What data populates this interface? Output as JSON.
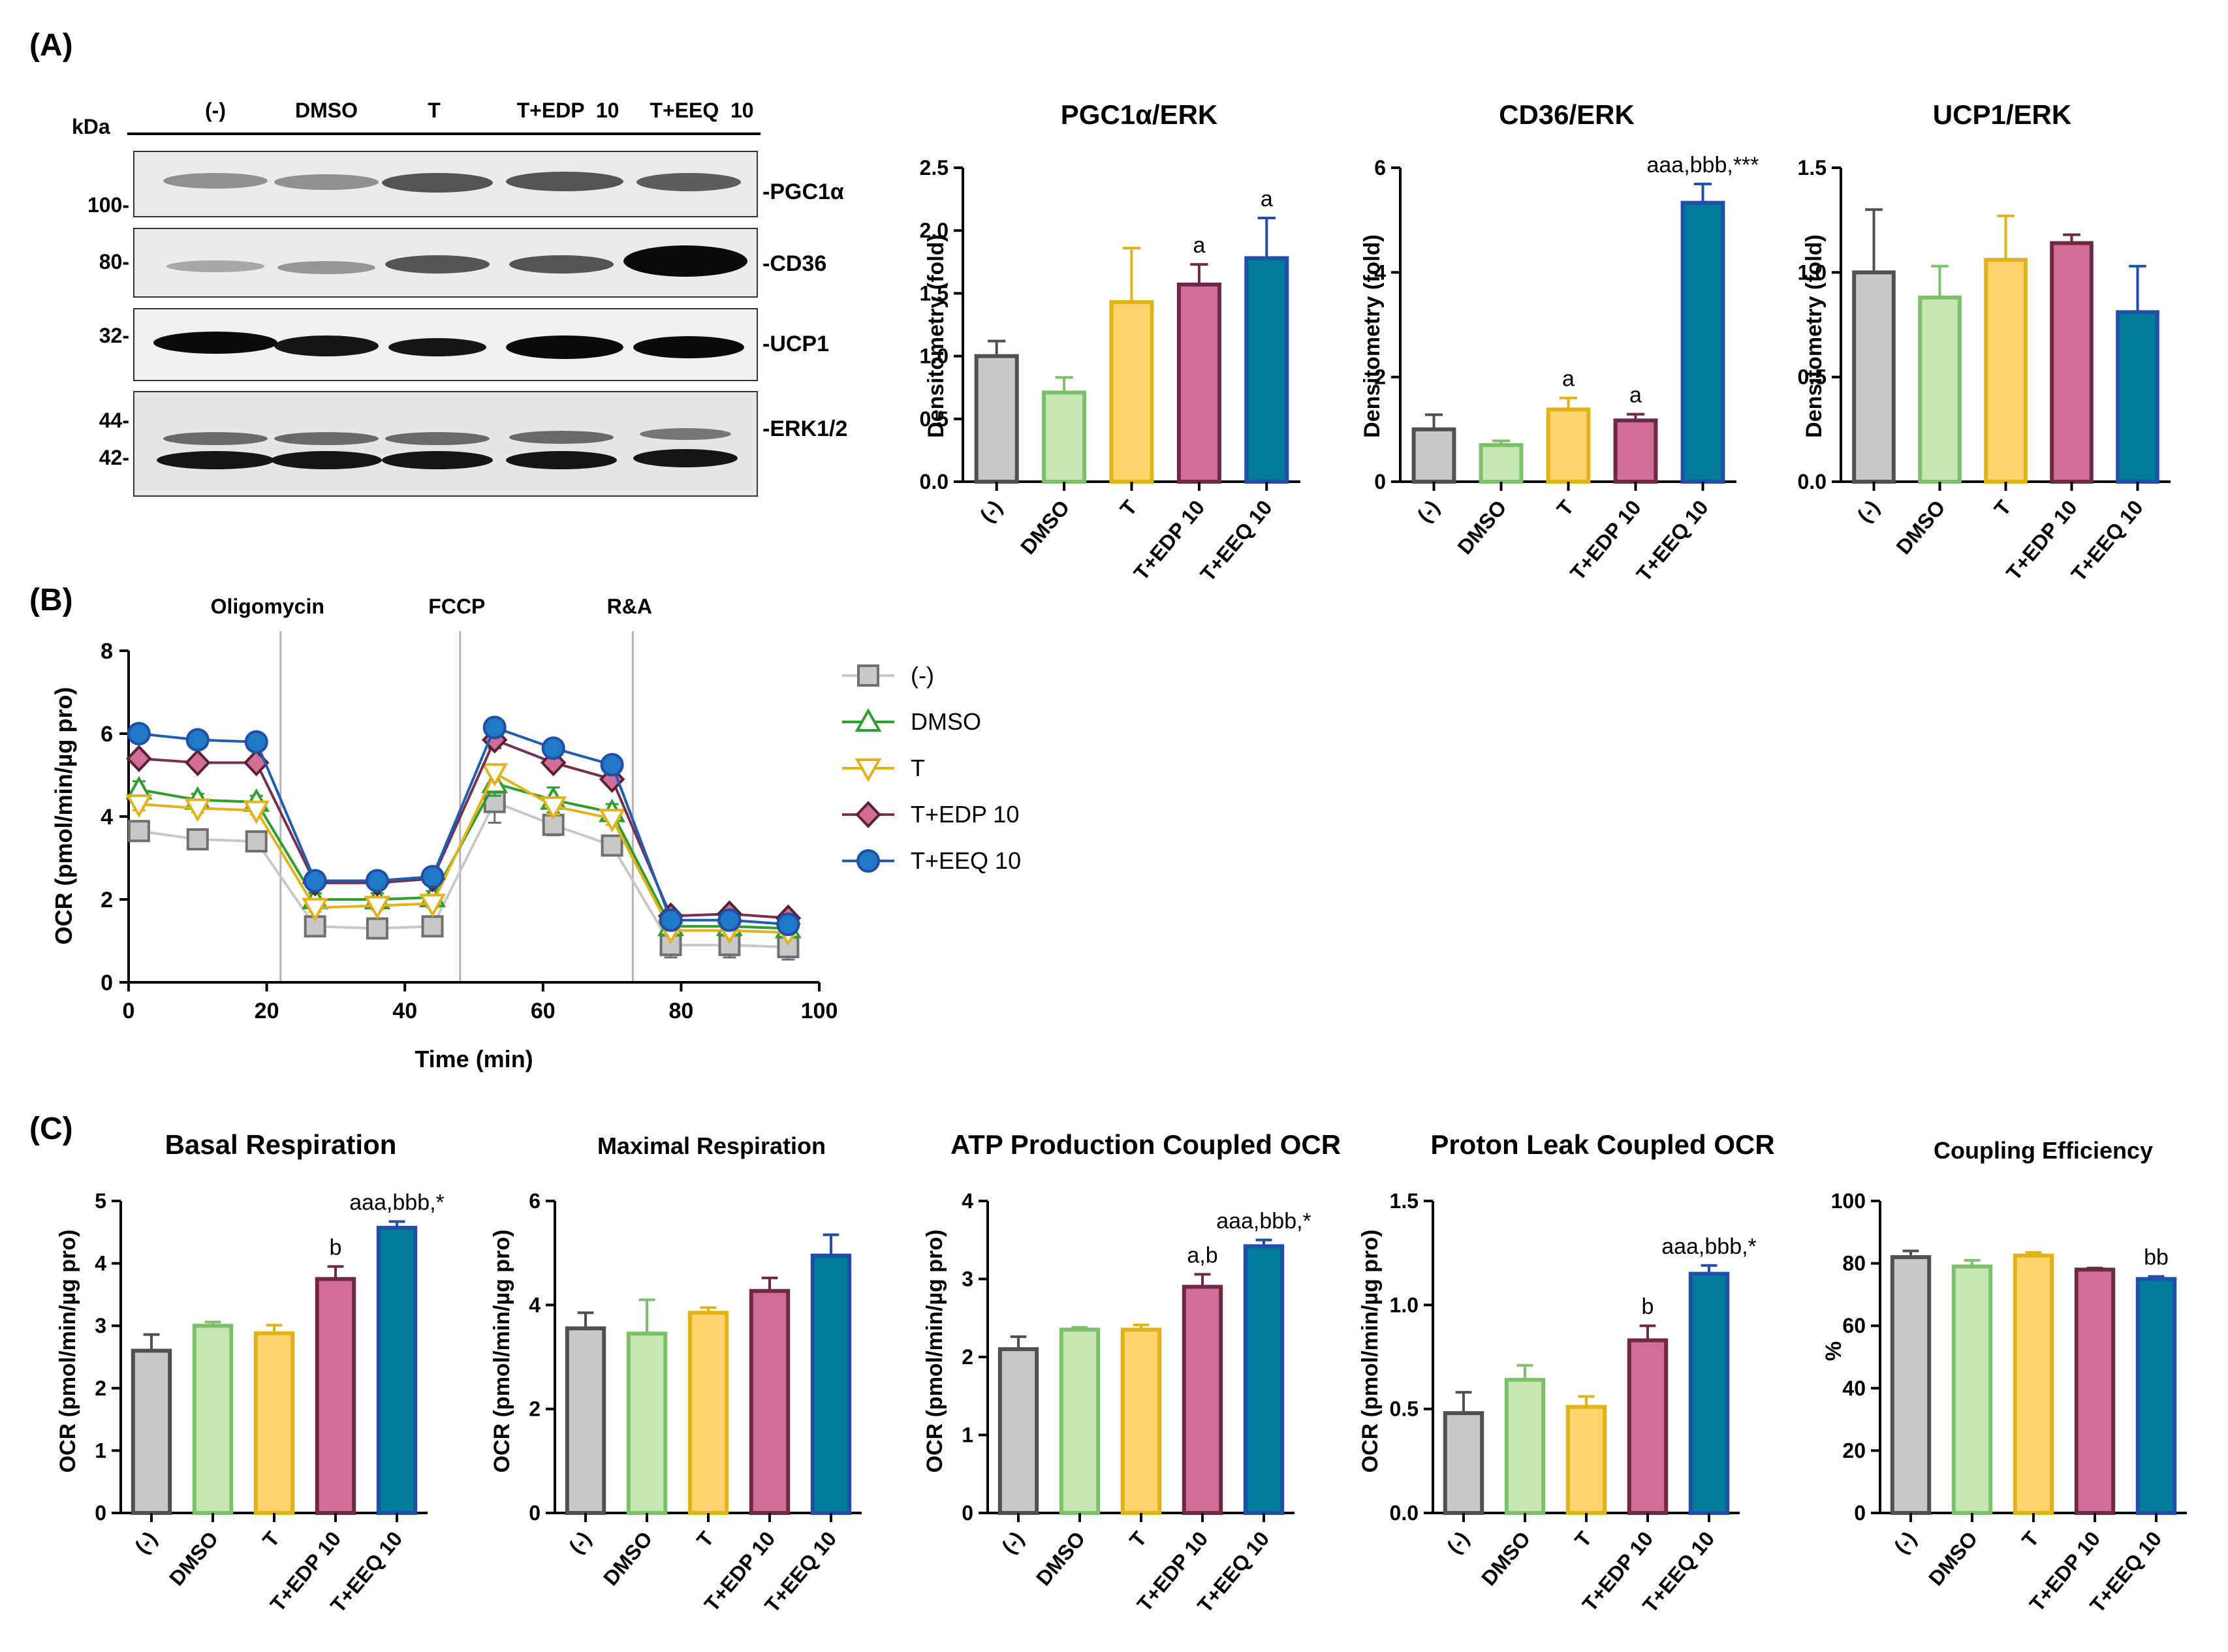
{
  "panel_labels": {
    "a": "(A)",
    "b": "(B)",
    "c": "(C)"
  },
  "colors": {
    "neg": "#c8c8c8",
    "dmso": "#c8e6b4",
    "t": "#ffd36e",
    "edp": "#d06e96",
    "eeq": "#007c99",
    "neg_edge": "#505050",
    "dmso_edge": "#7cc06a",
    "t_edge": "#e2b21a",
    "edp_edge": "#6e2a44",
    "eeq_edge": "#1f4fa8"
  },
  "categories": [
    "(-)",
    "DMSO",
    "T",
    "T+EDP 10",
    "T+EEQ 10"
  ],
  "western_blot": {
    "lanes": [
      "(-)",
      "DMSO",
      "T",
      "T+EDP  10",
      "T+EEQ  10"
    ],
    "kda_label": "kDa",
    "markers": [
      "100-",
      "80-",
      "32-",
      "44-",
      "42-"
    ],
    "proteins": [
      "-PGC1α",
      "-CD36",
      "-UCP1",
      "-ERK1/2"
    ]
  },
  "chart_data": [
    {
      "id": "pgc1a",
      "type": "bar",
      "title": "PGC1α/ERK",
      "ylabel": "Densitometry (fold)",
      "ylim": [
        0,
        2.5
      ],
      "ticks": [
        "0.0",
        "0.5",
        "1.0",
        "1.5",
        "2.0",
        "2.5"
      ],
      "categories": [
        "(-)",
        "DMSO",
        "T",
        "T+EDP 10",
        "T+EEQ 10"
      ],
      "values": [
        1.0,
        0.71,
        1.43,
        1.57,
        1.78
      ],
      "errors": [
        0.12,
        0.12,
        0.43,
        0.16,
        0.32
      ],
      "annotations": [
        "",
        "",
        "",
        "a",
        "a"
      ]
    },
    {
      "id": "cd36",
      "type": "bar",
      "title": "CD36/ERK",
      "ylabel": "Densitometry (fold)",
      "ylim": [
        0,
        6
      ],
      "ticks": [
        "0",
        "2",
        "4",
        "6"
      ],
      "categories": [
        "(-)",
        "DMSO",
        "T",
        "T+EDP 10",
        "T+EEQ 10"
      ],
      "values": [
        1.0,
        0.7,
        1.38,
        1.17,
        5.33
      ],
      "errors": [
        0.28,
        0.08,
        0.22,
        0.12,
        0.36
      ],
      "annotations": [
        "",
        "",
        "a",
        "a",
        "aaa,bbb,***"
      ]
    },
    {
      "id": "ucp1",
      "type": "bar",
      "title": "UCP1/ERK",
      "ylabel": "Densitometry (fold)",
      "ylim": [
        0,
        1.5
      ],
      "ticks": [
        "0.0",
        "0.5",
        "1.0",
        "1.5"
      ],
      "categories": [
        "(-)",
        "DMSO",
        "T",
        "T+EDP 10",
        "T+EEQ 10"
      ],
      "values": [
        1.0,
        0.88,
        1.06,
        1.14,
        0.81
      ],
      "errors": [
        0.3,
        0.15,
        0.21,
        0.04,
        0.22
      ],
      "annotations": [
        "",
        "",
        "",
        "",
        ""
      ]
    },
    {
      "id": "ocr",
      "type": "line",
      "xlabel": "Time (min)",
      "ylabel": "OCR (pmol/min/µg pro)",
      "xlim": [
        0,
        100
      ],
      "ylim": [
        0,
        8
      ],
      "xticks": [
        "0",
        "20",
        "40",
        "60",
        "80",
        "100"
      ],
      "yticks": [
        "0",
        "2",
        "4",
        "6",
        "8"
      ],
      "injections": [
        {
          "label": "Oligomycin",
          "x": 22
        },
        {
          "label": "FCCP",
          "x": 48
        },
        {
          "label": "R&A",
          "x": 73
        }
      ],
      "x": [
        1.5,
        10,
        18.5,
        27,
        36,
        44,
        53,
        61.5,
        70,
        78.5,
        87,
        95.5
      ],
      "series": [
        {
          "name": "(-)",
          "marker": "square",
          "values": [
            3.65,
            3.45,
            3.4,
            1.35,
            1.3,
            1.35,
            4.35,
            3.8,
            3.3,
            0.9,
            0.9,
            0.85
          ],
          "errors": [
            0.2,
            0.15,
            0.15,
            0.15,
            0.15,
            0.15,
            0.5,
            0.25,
            0.2,
            0.3,
            0.3,
            0.3
          ]
        },
        {
          "name": "DMSO",
          "marker": "triangle-up",
          "values": [
            4.65,
            4.4,
            4.35,
            2.0,
            2.0,
            2.05,
            4.8,
            4.4,
            4.1,
            1.35,
            1.35,
            1.3
          ],
          "errors": [
            0.2,
            0.15,
            0.15,
            0.15,
            0.15,
            0.15,
            0.3,
            0.3,
            0.2,
            0.15,
            0.15,
            0.15
          ]
        },
        {
          "name": "T",
          "marker": "triangle-down",
          "values": [
            4.3,
            4.2,
            4.15,
            1.8,
            1.85,
            1.9,
            5.05,
            4.25,
            3.95,
            1.25,
            1.25,
            1.2
          ],
          "errors": [
            0.15,
            0.1,
            0.1,
            0.1,
            0.1,
            0.1,
            0.2,
            0.2,
            0.15,
            0.1,
            0.1,
            0.1
          ]
        },
        {
          "name": "T+EDP 10",
          "marker": "diamond",
          "values": [
            5.4,
            5.3,
            5.3,
            2.4,
            2.4,
            2.5,
            5.85,
            5.3,
            4.9,
            1.6,
            1.65,
            1.55
          ],
          "errors": [
            0.15,
            0.1,
            0.1,
            0.1,
            0.1,
            0.1,
            0.2,
            0.15,
            0.15,
            0.1,
            0.1,
            0.1
          ]
        },
        {
          "name": "T+EEQ 10",
          "marker": "circle",
          "values": [
            6.0,
            5.85,
            5.8,
            2.45,
            2.45,
            2.55,
            6.15,
            5.65,
            5.25,
            1.5,
            1.5,
            1.4
          ],
          "errors": [
            0.1,
            0.1,
            0.1,
            0.1,
            0.1,
            0.1,
            0.15,
            0.1,
            0.1,
            0.1,
            0.1,
            0.1
          ]
        }
      ]
    },
    {
      "id": "basal",
      "type": "bar",
      "title": "Basal Respiration",
      "ylabel": "OCR (pmol/min/µg pro)",
      "ylim": [
        0,
        5
      ],
      "ticks": [
        "0",
        "1",
        "2",
        "3",
        "4",
        "5"
      ],
      "categories": [
        "(-)",
        "DMSO",
        "T",
        "T+EDP 10",
        "T+EEQ 10"
      ],
      "values": [
        2.6,
        3.0,
        2.88,
        3.75,
        4.57
      ],
      "errors": [
        0.26,
        0.06,
        0.13,
        0.2,
        0.1
      ],
      "annotations": [
        "",
        "",
        "",
        "b",
        "aaa,bbb,*"
      ]
    },
    {
      "id": "maximal",
      "type": "bar",
      "title": "Maximal Respiration",
      "ylabel": "OCR (pmol/min/µg pro)",
      "ylim": [
        0,
        6
      ],
      "ticks": [
        "0",
        "2",
        "4",
        "6"
      ],
      "categories": [
        "(-)",
        "DMSO",
        "T",
        "T+EDP 10",
        "T+EEQ 10"
      ],
      "values": [
        3.55,
        3.45,
        3.85,
        4.27,
        4.95
      ],
      "errors": [
        0.3,
        0.65,
        0.1,
        0.25,
        0.4
      ],
      "annotations": [
        "",
        "",
        "",
        "",
        ""
      ]
    },
    {
      "id": "atp",
      "type": "bar",
      "title": "ATP Production Coupled OCR",
      "ylabel": "OCR (pmol/min/µg pro)",
      "ylim": [
        0,
        4
      ],
      "ticks": [
        "0",
        "1",
        "2",
        "3",
        "4"
      ],
      "categories": [
        "(-)",
        "DMSO",
        "T",
        "T+EDP 10",
        "T+EEQ 10"
      ],
      "values": [
        2.1,
        2.35,
        2.35,
        2.9,
        3.42
      ],
      "errors": [
        0.16,
        0.03,
        0.06,
        0.16,
        0.08
      ],
      "annotations": [
        "",
        "",
        "",
        "a,b",
        "aaa,bbb,*"
      ]
    },
    {
      "id": "leak",
      "type": "bar",
      "title": "Proton Leak Coupled OCR",
      "ylabel": "OCR (pmol/min/µg pro)",
      "ylim": [
        0,
        1.5
      ],
      "ticks": [
        "0.0",
        "0.5",
        "1.0",
        "1.5"
      ],
      "categories": [
        "(-)",
        "DMSO",
        "T",
        "T+EDP 10",
        "T+EEQ 10"
      ],
      "values": [
        0.48,
        0.64,
        0.51,
        0.83,
        1.15
      ],
      "errors": [
        0.1,
        0.07,
        0.05,
        0.07,
        0.04
      ],
      "annotations": [
        "",
        "",
        "",
        "b",
        "aaa,bbb,*"
      ]
    },
    {
      "id": "coupling",
      "type": "bar",
      "title": "Coupling Efficiency",
      "ylabel": "%",
      "ylim": [
        0,
        100
      ],
      "ticks": [
        "0",
        "20",
        "40",
        "60",
        "80",
        "100"
      ],
      "categories": [
        "(-)",
        "DMSO",
        "T",
        "T+EDP 10",
        "T+EEQ 10"
      ],
      "values": [
        82,
        79,
        82.5,
        78,
        75
      ],
      "errors": [
        2,
        2,
        1,
        0.5,
        0.8
      ],
      "annotations": [
        "",
        "",
        "",
        "",
        "bb"
      ]
    }
  ]
}
